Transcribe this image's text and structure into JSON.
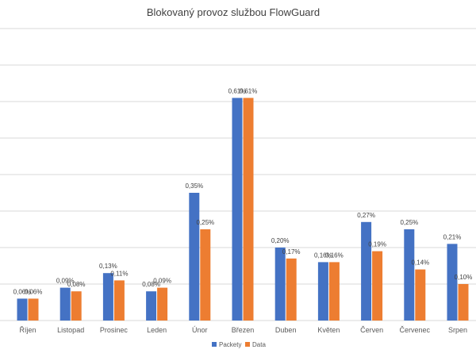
{
  "chart_data": {
    "type": "bar",
    "title": "Blokovaný provoz službou FlowGuard",
    "xlabel": "",
    "ylabel": "",
    "ylim": [
      0,
      0.8
    ],
    "grid": true,
    "legend_position": "bottom",
    "categories": [
      "Říjen",
      "Listopad",
      "Prosinec",
      "Leden",
      "Únor",
      "Březen",
      "Duben",
      "Květen",
      "Červen",
      "Červenec",
      "Srpen"
    ],
    "series": [
      {
        "name": "Packety",
        "color": "#4472C4",
        "values": [
          0.06,
          0.09,
          0.13,
          0.08,
          0.35,
          0.61,
          0.2,
          0.16,
          0.27,
          0.25,
          0.21
        ],
        "labels": [
          "0,06%",
          "0,09%",
          "0,13%",
          "0,08%",
          "0,35%",
          "0,61%",
          "0,20%",
          "0,16%",
          "0,27%",
          "0,25%",
          "0,21%"
        ]
      },
      {
        "name": "Data",
        "color": "#ED7D31",
        "values": [
          0.06,
          0.08,
          0.11,
          0.09,
          0.25,
          0.61,
          0.17,
          0.16,
          0.19,
          0.14,
          0.1
        ],
        "labels": [
          "0,06%",
          "0,08%",
          "0,11%",
          "0,09%",
          "0,25%",
          "0,61%",
          "0,17%",
          "0,16%",
          "0,19%",
          "0,14%",
          "0,10%"
        ]
      }
    ]
  }
}
